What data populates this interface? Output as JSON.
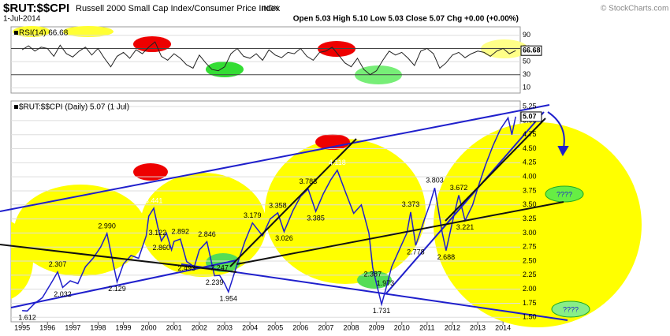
{
  "header": {
    "symbol": "$RUT:$$CPI",
    "name": "Russell 2000 Small Cap Index/Consumer Price Index",
    "exchange": "INDX",
    "date": "1-Jul-2014",
    "quote": "Open 5.03 High 5.10 Low 5.03 Close 5.07 Chg +0.00 (+0.00%)",
    "credit": "© StockCharts.com"
  },
  "chart_data": [
    {
      "type": "line",
      "title": "RSI(14) 66.68",
      "last_value": 66.68,
      "color": "#222222",
      "x": [
        1995.0,
        1995.25,
        1995.5,
        1995.75,
        1996.0,
        1996.25,
        1996.5,
        1996.75,
        1997.0,
        1997.25,
        1997.5,
        1997.75,
        1998.0,
        1998.25,
        1998.5,
        1998.75,
        1999.0,
        1999.25,
        1999.5,
        1999.75,
        2000.0,
        2000.25,
        2000.5,
        2000.75,
        2001.0,
        2001.25,
        2001.5,
        2001.75,
        2002.0,
        2002.25,
        2002.5,
        2002.75,
        2003.0,
        2003.25,
        2003.5,
        2003.75,
        2004.0,
        2004.25,
        2004.5,
        2004.75,
        2005.0,
        2005.25,
        2005.5,
        2005.75,
        2006.0,
        2006.25,
        2006.5,
        2006.75,
        2007.0,
        2007.25,
        2007.5,
        2007.75,
        2008.0,
        2008.25,
        2008.5,
        2008.75,
        2009.0,
        2009.25,
        2009.5,
        2009.75,
        2010.0,
        2010.25,
        2010.5,
        2010.75,
        2011.0,
        2011.25,
        2011.5,
        2011.75,
        2012.0,
        2012.25,
        2012.5,
        2012.75,
        2013.0,
        2013.25,
        2013.5,
        2013.75,
        2014.0,
        2014.25,
        2014.5
      ],
      "values": [
        68,
        74,
        66,
        72,
        70,
        58,
        75,
        62,
        57,
        66,
        72,
        60,
        70,
        55,
        42,
        58,
        64,
        55,
        68,
        62,
        72,
        80,
        58,
        52,
        62,
        55,
        45,
        40,
        60,
        48,
        38,
        36,
        42,
        62,
        70,
        58,
        55,
        62,
        52,
        68,
        60,
        56,
        64,
        62,
        70,
        58,
        52,
        64,
        66,
        72,
        60,
        48,
        42,
        55,
        38,
        30,
        36,
        52,
        66,
        60,
        64,
        55,
        44,
        66,
        70,
        62,
        40,
        48,
        60,
        64,
        56,
        62,
        66,
        64,
        58,
        66,
        70,
        62,
        66.68
      ],
      "xlim": [
        1994.56,
        2014.68
      ],
      "ylim": [
        2,
        103
      ],
      "yticks": [
        10,
        30,
        50,
        70,
        90
      ]
    },
    {
      "type": "line",
      "title": "$RUT:$$CPI (Daily) 5.07 (1 Jul)",
      "last_value": 5.07,
      "color": "#1f1fcc",
      "x": [
        1995.0,
        1995.2,
        1995.5,
        1995.8,
        1996.0,
        1996.2,
        1996.4,
        1996.6,
        1996.9,
        1997.2,
        1997.5,
        1997.8,
        1998.1,
        1998.35,
        1998.6,
        1998.75,
        1999.0,
        1999.3,
        1999.6,
        1999.9,
        2000.0,
        2000.2,
        2000.35,
        2000.5,
        2000.7,
        2000.9,
        2001.0,
        2001.25,
        2001.5,
        2001.8,
        2002.0,
        2002.3,
        2002.6,
        2002.8,
        2003.0,
        2003.15,
        2003.5,
        2003.8,
        2004.1,
        2004.5,
        2004.8,
        2005.1,
        2005.35,
        2005.7,
        2006.0,
        2006.3,
        2006.6,
        2006.9,
        2007.2,
        2007.45,
        2007.8,
        2008.1,
        2008.4,
        2008.7,
        2008.85,
        2009.0,
        2009.2,
        2009.35,
        2009.6,
        2009.9,
        2010.2,
        2010.35,
        2010.55,
        2010.9,
        2011.1,
        2011.3,
        2011.6,
        2011.75,
        2012.0,
        2012.25,
        2012.5,
        2012.8,
        2013.0,
        2013.3,
        2013.6,
        2013.9,
        2014.2,
        2014.35,
        2014.5
      ],
      "values": [
        1.62,
        1.612,
        1.75,
        1.85,
        2.0,
        2.15,
        2.307,
        2.032,
        2.15,
        2.1,
        2.4,
        2.55,
        2.75,
        2.99,
        2.45,
        2.129,
        2.45,
        2.6,
        2.55,
        2.95,
        3.3,
        3.441,
        3.122,
        2.86,
        3.0,
        2.7,
        2.85,
        2.892,
        2.493,
        2.4,
        2.7,
        2.846,
        2.239,
        2.247,
        2.1,
        1.954,
        2.45,
        2.85,
        3.179,
        2.95,
        3.25,
        3.358,
        3.026,
        3.4,
        3.65,
        3.783,
        3.385,
        3.7,
        3.95,
        4.118,
        3.7,
        3.35,
        3.5,
        3.0,
        2.387,
        2.1,
        1.731,
        1.973,
        2.4,
        2.7,
        3.0,
        3.373,
        2.778,
        3.25,
        3.5,
        3.803,
        3.0,
        2.688,
        3.2,
        3.672,
        3.221,
        3.5,
        3.8,
        4.2,
        4.55,
        4.85,
        5.05,
        4.75,
        5.07
      ],
      "annotations": [
        {
          "x": 1995.2,
          "value": 1.612,
          "label": "1.612"
        },
        {
          "x": 1996.4,
          "value": 2.307,
          "label": "2.307"
        },
        {
          "x": 1996.6,
          "value": 2.032,
          "label": "2.032"
        },
        {
          "x": 1998.35,
          "value": 2.99,
          "label": "2.990"
        },
        {
          "x": 1998.75,
          "value": 2.129,
          "label": "2.129"
        },
        {
          "x": 2000.2,
          "value": 3.441,
          "label": "3.441"
        },
        {
          "x": 2000.35,
          "value": 3.122,
          "label": "3.122"
        },
        {
          "x": 2000.5,
          "value": 2.86,
          "label": "2.860"
        },
        {
          "x": 2001.25,
          "value": 2.892,
          "label": "2.892"
        },
        {
          "x": 2001.5,
          "value": 2.493,
          "label": "2.493"
        },
        {
          "x": 2002.3,
          "value": 2.846,
          "label": "2.846"
        },
        {
          "x": 2002.6,
          "value": 2.239,
          "label": "2.239"
        },
        {
          "x": 2002.8,
          "value": 2.247,
          "label": "2.247"
        },
        {
          "x": 2003.15,
          "value": 1.954,
          "label": "1.954"
        },
        {
          "x": 2004.1,
          "value": 3.179,
          "label": "3.179"
        },
        {
          "x": 2005.1,
          "value": 3.358,
          "label": "3.358"
        },
        {
          "x": 2005.35,
          "value": 3.026,
          "label": "3.026"
        },
        {
          "x": 2006.3,
          "value": 3.783,
          "label": "3.783"
        },
        {
          "x": 2006.6,
          "value": 3.385,
          "label": "3.385"
        },
        {
          "x": 2007.45,
          "value": 4.118,
          "label": "4.118"
        },
        {
          "x": 2008.85,
          "value": 2.387,
          "label": "2.387"
        },
        {
          "x": 2009.35,
          "value": 1.973,
          "label": "1.973"
        },
        {
          "x": 2009.2,
          "value": 1.731,
          "label": "1.731"
        },
        {
          "x": 2010.35,
          "value": 3.373,
          "label": "3.373"
        },
        {
          "x": 2010.55,
          "value": 2.778,
          "label": "2.778"
        },
        {
          "x": 2011.3,
          "value": 3.803,
          "label": "3.803"
        },
        {
          "x": 2012.25,
          "value": 3.672,
          "label": "3.672"
        },
        {
          "x": 2012.5,
          "value": 3.221,
          "label": "3.221"
        },
        {
          "x": 2011.75,
          "value": 2.688,
          "label": "2.688"
        }
      ],
      "notes": [
        "????",
        "????"
      ],
      "xlim": [
        1994.56,
        2014.68
      ],
      "ylim": [
        1.42,
        5.35
      ],
      "xticks": [
        1995,
        1996,
        1997,
        1998,
        1999,
        2000,
        2001,
        2002,
        2003,
        2004,
        2005,
        2006,
        2007,
        2008,
        2009,
        2010,
        2011,
        2012,
        2013,
        2014
      ],
      "yticks": [
        {
          "value": 1.5,
          "label": "1.50"
        },
        {
          "value": 1.75,
          "label": "1.75"
        },
        {
          "value": 2.0,
          "label": "2.00"
        },
        {
          "value": 2.25,
          "label": "2.25"
        },
        {
          "value": 2.5,
          "label": "2.50"
        },
        {
          "value": 2.75,
          "label": "2.75"
        },
        {
          "value": 3.0,
          "label": "3.00"
        },
        {
          "value": 3.25,
          "label": "3.25"
        },
        {
          "value": 3.5,
          "label": "3.50"
        },
        {
          "value": 3.75,
          "label": "3.75"
        },
        {
          "value": 4.0,
          "label": "4.00"
        },
        {
          "value": 4.25,
          "label": "4.25"
        },
        {
          "value": 4.5,
          "label": "4.50"
        },
        {
          "value": 4.75,
          "label": "4.75"
        },
        {
          "value": 5.0,
          "label": "5.00"
        },
        {
          "value": 5.25,
          "label": "5.25"
        }
      ]
    }
  ]
}
